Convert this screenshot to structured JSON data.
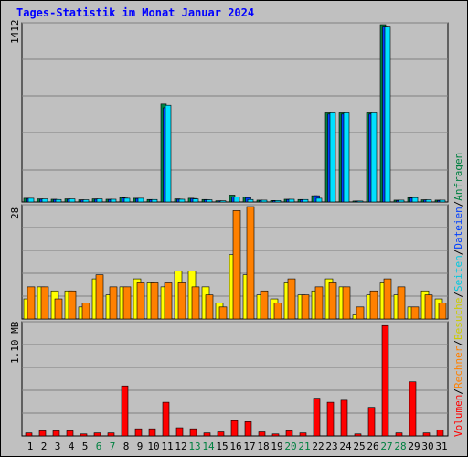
{
  "title": "Tages-Statistik im Monat Januar 2024",
  "colors": {
    "hits": "#008040",
    "files": "#0040ff",
    "pages": "#00e0ff",
    "visits": "#ffff00",
    "sites": "#ff8000",
    "kbytes": "#ff0000",
    "background": "#c0c0c0",
    "grid": "#808080",
    "weekend": "#008040",
    "weekday": "#000000"
  },
  "legend": {
    "top": {
      "hits": "Anfragen",
      "files": "Dateien"
    },
    "mid": {
      "pages": "Seiten",
      "visits": "Besuche",
      "sites": "Rechner"
    },
    "bottom": {
      "kbytes": "Volumen"
    },
    "sep": "/"
  },
  "chart_data": [
    {
      "type": "bar",
      "panel": "requests",
      "axis_max_label": "1412",
      "ylim": [
        0,
        1412
      ],
      "categories": [
        "1",
        "2",
        "3",
        "4",
        "5",
        "6",
        "7",
        "8",
        "9",
        "10",
        "11",
        "12",
        "13",
        "14",
        "15",
        "16",
        "17",
        "18",
        "19",
        "20",
        "21",
        "22",
        "23",
        "24",
        "25",
        "26",
        "27",
        "28",
        "29",
        "30",
        "31"
      ],
      "weekend": [
        6,
        7,
        13,
        14,
        20,
        21,
        27,
        28
      ],
      "series": [
        {
          "name": "Anfragen",
          "values": [
            30,
            25,
            22,
            25,
            18,
            25,
            22,
            35,
            30,
            20,
            780,
            25,
            30,
            20,
            10,
            55,
            40,
            15,
            12,
            22,
            20,
            50,
            710,
            710,
            8,
            710,
            1412,
            15,
            35,
            18,
            15
          ]
        },
        {
          "name": "Dateien",
          "values": [
            28,
            22,
            20,
            22,
            16,
            22,
            20,
            32,
            28,
            18,
            750,
            22,
            28,
            18,
            8,
            40,
            35,
            12,
            10,
            20,
            18,
            50,
            700,
            700,
            6,
            700,
            1400,
            12,
            32,
            16,
            12
          ]
        },
        {
          "name": "Seiten",
          "values": [
            30,
            25,
            20,
            25,
            18,
            25,
            22,
            30,
            30,
            20,
            770,
            22,
            25,
            18,
            10,
            40,
            20,
            15,
            12,
            22,
            20,
            30,
            710,
            710,
            8,
            710,
            1400,
            15,
            35,
            18,
            15
          ]
        }
      ]
    },
    {
      "type": "bar",
      "panel": "visits",
      "axis_max_label": "28",
      "ylim": [
        0,
        28
      ],
      "categories": [
        "1",
        "2",
        "3",
        "4",
        "5",
        "6",
        "7",
        "8",
        "9",
        "10",
        "11",
        "12",
        "13",
        "14",
        "15",
        "16",
        "17",
        "18",
        "19",
        "20",
        "21",
        "22",
        "23",
        "24",
        "25",
        "26",
        "27",
        "28",
        "29",
        "30",
        "31"
      ],
      "series": [
        {
          "name": "Besuche",
          "values": [
            5,
            8,
            7,
            7,
            3,
            10,
            6,
            8,
            10,
            9,
            8,
            12,
            12,
            8,
            4,
            16,
            11,
            6,
            5,
            9,
            6,
            7,
            10,
            8,
            1,
            6,
            9,
            6,
            3,
            7,
            5
          ]
        },
        {
          "name": "Rechner",
          "values": [
            8,
            8,
            5,
            7,
            4,
            11,
            8,
            8,
            9,
            9,
            9,
            9,
            8,
            6,
            3,
            27,
            28,
            7,
            4,
            10,
            6,
            8,
            9,
            8,
            3,
            7,
            10,
            8,
            3,
            6,
            4
          ]
        }
      ]
    },
    {
      "type": "bar",
      "panel": "volume",
      "axis_max_label": "1.10 MB",
      "ylim": [
        0,
        1.1
      ],
      "categories": [
        "1",
        "2",
        "3",
        "4",
        "5",
        "6",
        "7",
        "8",
        "9",
        "10",
        "11",
        "12",
        "13",
        "14",
        "15",
        "16",
        "17",
        "18",
        "19",
        "20",
        "21",
        "22",
        "23",
        "24",
        "25",
        "26",
        "27",
        "28",
        "29",
        "30",
        "31"
      ],
      "series": [
        {
          "name": "Volumen",
          "values": [
            0.03,
            0.05,
            0.05,
            0.05,
            0.02,
            0.03,
            0.03,
            0.49,
            0.07,
            0.07,
            0.33,
            0.08,
            0.07,
            0.03,
            0.04,
            0.15,
            0.14,
            0.04,
            0.02,
            0.05,
            0.03,
            0.37,
            0.33,
            0.35,
            0.02,
            0.28,
            1.08,
            0.03,
            0.53,
            0.03,
            0.06
          ]
        }
      ]
    }
  ]
}
